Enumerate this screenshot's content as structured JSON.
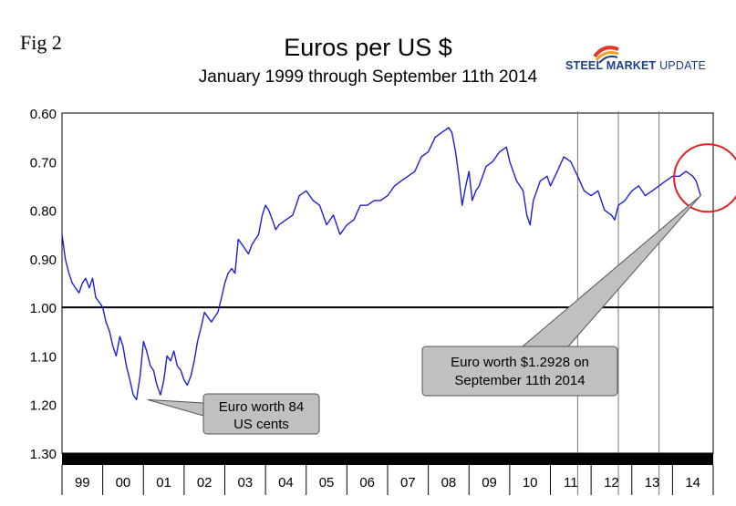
{
  "figure_label": "Fig 2",
  "logo": {
    "bold": "STEEL MARKET",
    "light": " UPDATE",
    "swirl_colors": [
      "#e03a2f",
      "#f2a21d",
      "#1c3f86"
    ]
  },
  "chart_data": {
    "type": "line",
    "title": "Euros per US $",
    "subtitle": "January 1999 through September 11th 2014",
    "xlabel": "",
    "ylabel": "",
    "y_inverted": true,
    "ylim": [
      0.6,
      1.3
    ],
    "yticks": [
      "0.60",
      "0.70",
      "0.80",
      "0.90",
      "1.00",
      "1.10",
      "1.20",
      "1.30"
    ],
    "ytick_values": [
      0.6,
      0.7,
      0.8,
      0.9,
      1.0,
      1.1,
      1.2,
      1.3
    ],
    "xlim": [
      1999.0,
      2015.0
    ],
    "categories": [
      "99",
      "00",
      "01",
      "02",
      "03",
      "04",
      "05",
      "06",
      "07",
      "08",
      "09",
      "10",
      "11",
      "12",
      "13",
      "14"
    ],
    "reference_line": {
      "value": 1.0
    },
    "vertical_markers": [
      2011.67,
      2012.67,
      2013.67
    ],
    "series": [
      {
        "name": "Euros per US $",
        "color": "#1f1fd6",
        "x": [
          1999.0,
          1999.08,
          1999.17,
          1999.25,
          1999.33,
          1999.42,
          1999.5,
          1999.58,
          1999.67,
          1999.75,
          1999.83,
          1999.92,
          2000.0,
          2000.08,
          2000.17,
          2000.25,
          2000.33,
          2000.42,
          2000.5,
          2000.58,
          2000.67,
          2000.75,
          2000.83,
          2000.92,
          2001.0,
          2001.08,
          2001.17,
          2001.25,
          2001.33,
          2001.42,
          2001.5,
          2001.58,
          2001.67,
          2001.75,
          2001.83,
          2001.92,
          2002.0,
          2002.08,
          2002.17,
          2002.25,
          2002.33,
          2002.42,
          2002.5,
          2002.58,
          2002.67,
          2002.75,
          2002.83,
          2002.92,
          2003.0,
          2003.08,
          2003.17,
          2003.25,
          2003.33,
          2003.42,
          2003.5,
          2003.58,
          2003.67,
          2003.75,
          2003.83,
          2003.92,
          2004.0,
          2004.08,
          2004.17,
          2004.25,
          2004.33,
          2004.5,
          2004.67,
          2004.83,
          2005.0,
          2005.17,
          2005.33,
          2005.5,
          2005.67,
          2005.83,
          2006.0,
          2006.17,
          2006.33,
          2006.5,
          2006.67,
          2006.83,
          2007.0,
          2007.17,
          2007.33,
          2007.5,
          2007.67,
          2007.83,
          2008.0,
          2008.17,
          2008.33,
          2008.5,
          2008.58,
          2008.67,
          2008.75,
          2008.83,
          2008.92,
          2009.0,
          2009.08,
          2009.17,
          2009.25,
          2009.42,
          2009.58,
          2009.75,
          2009.92,
          2010.0,
          2010.17,
          2010.33,
          2010.42,
          2010.5,
          2010.58,
          2010.75,
          2010.92,
          2011.0,
          2011.17,
          2011.33,
          2011.5,
          2011.67,
          2011.83,
          2012.0,
          2012.17,
          2012.33,
          2012.5,
          2012.58,
          2012.67,
          2012.83,
          2013.0,
          2013.17,
          2013.33,
          2013.5,
          2013.67,
          2013.83,
          2014.0,
          2014.17,
          2014.33,
          2014.5,
          2014.58,
          2014.69
        ],
        "values": [
          0.85,
          0.9,
          0.93,
          0.95,
          0.96,
          0.97,
          0.95,
          0.94,
          0.96,
          0.94,
          0.98,
          0.99,
          1.0,
          1.03,
          1.05,
          1.08,
          1.1,
          1.06,
          1.08,
          1.12,
          1.15,
          1.18,
          1.19,
          1.14,
          1.07,
          1.09,
          1.12,
          1.13,
          1.16,
          1.18,
          1.15,
          1.1,
          1.11,
          1.09,
          1.12,
          1.13,
          1.15,
          1.16,
          1.14,
          1.11,
          1.07,
          1.04,
          1.01,
          1.02,
          1.03,
          1.02,
          1.01,
          0.98,
          0.95,
          0.93,
          0.92,
          0.93,
          0.86,
          0.87,
          0.88,
          0.89,
          0.87,
          0.86,
          0.85,
          0.81,
          0.79,
          0.8,
          0.82,
          0.84,
          0.83,
          0.82,
          0.81,
          0.77,
          0.76,
          0.78,
          0.79,
          0.83,
          0.81,
          0.85,
          0.83,
          0.82,
          0.79,
          0.79,
          0.78,
          0.78,
          0.77,
          0.75,
          0.74,
          0.73,
          0.72,
          0.69,
          0.68,
          0.65,
          0.64,
          0.63,
          0.64,
          0.68,
          0.73,
          0.79,
          0.75,
          0.72,
          0.78,
          0.76,
          0.75,
          0.71,
          0.7,
          0.68,
          0.67,
          0.7,
          0.74,
          0.76,
          0.81,
          0.83,
          0.78,
          0.74,
          0.73,
          0.75,
          0.72,
          0.69,
          0.7,
          0.73,
          0.76,
          0.77,
          0.76,
          0.8,
          0.81,
          0.82,
          0.79,
          0.78,
          0.76,
          0.75,
          0.77,
          0.76,
          0.75,
          0.74,
          0.73,
          0.73,
          0.72,
          0.73,
          0.74,
          0.77
        ]
      }
    ],
    "callouts": [
      {
        "text": [
          "Euro worth 84",
          "US cents"
        ],
        "x": 2001.1,
        "y": 1.19
      },
      {
        "text": [
          "Euro worth $1.2928 on",
          "September 11th 2014"
        ],
        "x": 2014.69,
        "y": 0.77
      }
    ],
    "highlight_circle": {
      "x": 2014.6,
      "y": 0.76
    }
  }
}
